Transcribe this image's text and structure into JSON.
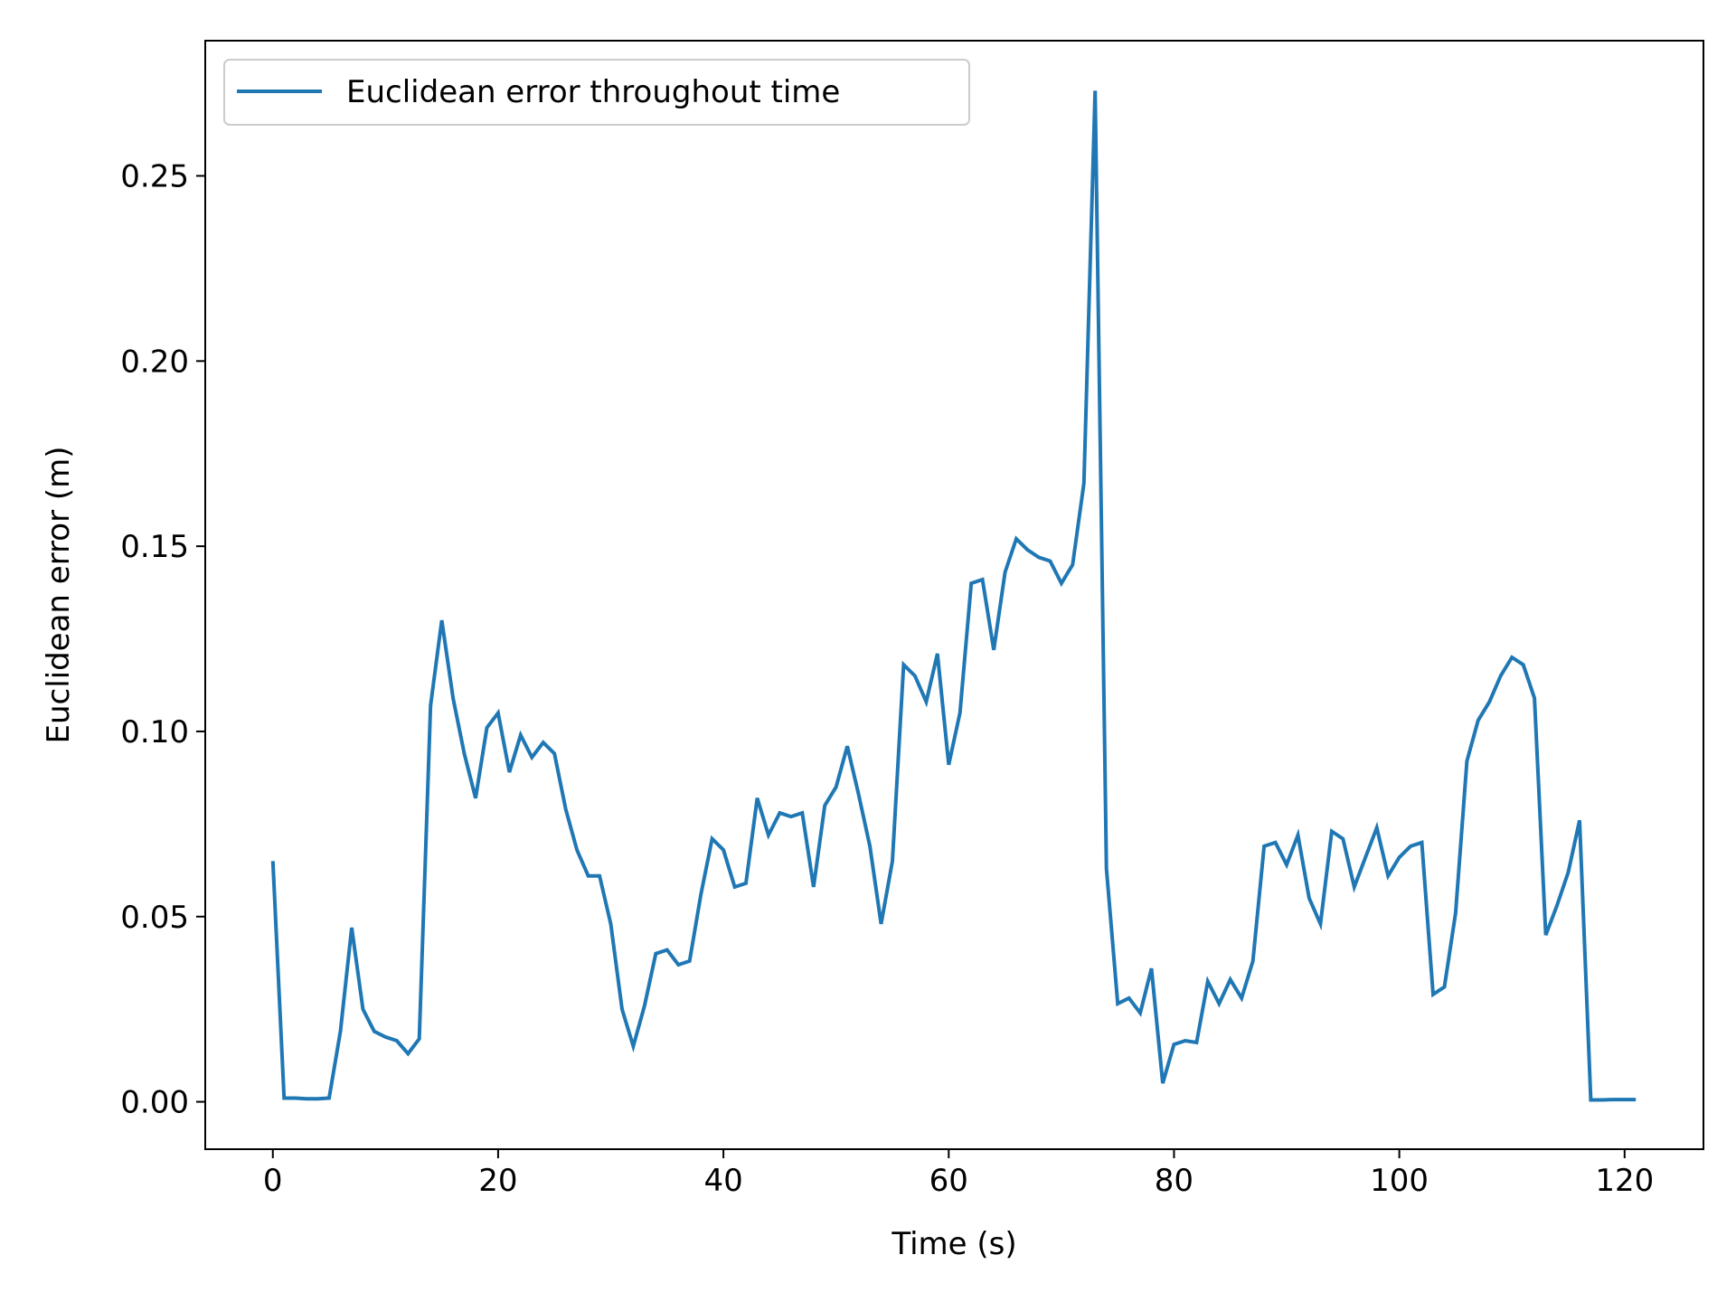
{
  "chart_data": {
    "type": "line",
    "title": "",
    "xlabel": "Time (s)",
    "ylabel": "Euclidean error (m)",
    "xlim": [
      -6,
      127
    ],
    "ylim": [
      -0.0128,
      0.2865
    ],
    "xticks": [
      0,
      20,
      40,
      60,
      80,
      100,
      120
    ],
    "xtick_labels": [
      "0",
      "20",
      "40",
      "60",
      "80",
      "100",
      "120"
    ],
    "yticks": [
      0.0,
      0.05,
      0.1,
      0.15,
      0.2,
      0.25
    ],
    "ytick_labels": [
      "0.00",
      "0.05",
      "0.10",
      "0.15",
      "0.20",
      "0.25"
    ],
    "grid": false,
    "legend_position": "top-left",
    "colors": {
      "series": "#1f77b4",
      "axes": "#000000",
      "legend_border": "#cccccc"
    },
    "series": [
      {
        "name": "Euclidean error throughout time",
        "x": [
          0,
          1,
          2,
          3,
          4,
          5,
          6,
          7,
          8,
          9,
          10,
          11,
          12,
          13,
          14,
          15,
          16,
          17,
          18,
          19,
          20,
          21,
          22,
          23,
          24,
          25,
          26,
          27,
          28,
          29,
          30,
          31,
          32,
          33,
          34,
          35,
          36,
          37,
          38,
          39,
          40,
          41,
          42,
          43,
          44,
          45,
          46,
          47,
          48,
          49,
          50,
          51,
          52,
          53,
          54,
          55,
          56,
          57,
          58,
          59,
          60,
          61,
          62,
          63,
          64,
          65,
          66,
          67,
          68,
          69,
          70,
          71,
          72,
          73,
          74,
          75,
          76,
          77,
          78,
          79,
          80,
          81,
          82,
          83,
          84,
          85,
          86,
          87,
          88,
          89,
          90,
          91,
          92,
          93,
          94,
          95,
          96,
          97,
          98,
          99,
          100,
          101,
          102,
          103,
          104,
          105,
          106,
          107,
          108,
          109,
          110,
          111,
          112,
          113,
          114,
          115,
          116,
          117,
          118,
          119,
          120,
          121
        ],
        "y": [
          0.065,
          0.001,
          0.001,
          0.0008,
          0.0008,
          0.001,
          0.019,
          0.047,
          0.025,
          0.019,
          0.0175,
          0.0165,
          0.013,
          0.017,
          0.107,
          0.13,
          0.109,
          0.094,
          0.082,
          0.101,
          0.105,
          0.089,
          0.099,
          0.093,
          0.097,
          0.094,
          0.079,
          0.068,
          0.061,
          0.061,
          0.048,
          0.025,
          0.015,
          0.026,
          0.04,
          0.041,
          0.037,
          0.038,
          0.056,
          0.071,
          0.068,
          0.058,
          0.059,
          0.082,
          0.072,
          0.078,
          0.077,
          0.078,
          0.058,
          0.08,
          0.085,
          0.096,
          0.083,
          0.069,
          0.048,
          0.065,
          0.118,
          0.115,
          0.108,
          0.121,
          0.091,
          0.105,
          0.14,
          0.141,
          0.122,
          0.143,
          0.152,
          0.149,
          0.147,
          0.146,
          0.14,
          0.145,
          0.167,
          0.273,
          0.063,
          0.0265,
          0.028,
          0.024,
          0.036,
          0.005,
          0.0155,
          0.0165,
          0.016,
          0.0325,
          0.0265,
          0.033,
          0.028,
          0.038,
          0.069,
          0.07,
          0.064,
          0.072,
          0.055,
          0.048,
          0.073,
          0.071,
          0.058,
          0.066,
          0.074,
          0.061,
          0.066,
          0.069,
          0.07,
          0.029,
          0.031,
          0.051,
          0.092,
          0.103,
          0.108,
          0.115,
          0.12,
          0.118,
          0.109,
          0.045,
          0.053,
          0.062,
          0.076,
          0.0005,
          0.0005,
          0.0006,
          0.0006,
          0.0006
        ]
      }
    ]
  }
}
